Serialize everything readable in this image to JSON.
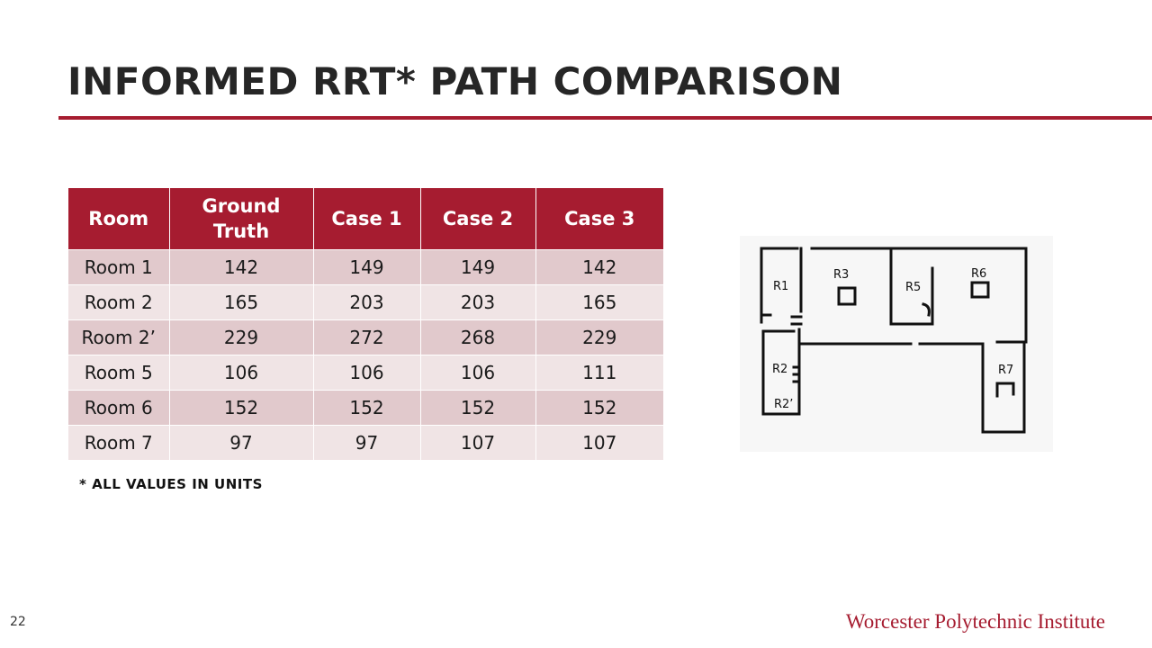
{
  "slide": {
    "title": "INFORMED RRT* PATH COMPARISON",
    "footnote": "* ALL VALUES IN UNITS",
    "page_number": "22",
    "institute": "Worcester Polytechnic Institute",
    "accent_color": "#a61c30"
  },
  "table": {
    "headers": [
      "Room",
      "Ground Truth",
      "Case 1",
      "Case 2",
      "Case 3"
    ],
    "rows": [
      [
        "Room 1",
        "142",
        "149",
        "149",
        "142"
      ],
      [
        "Room 2",
        "165",
        "203",
        "203",
        "165"
      ],
      [
        "Room 2’",
        "229",
        "272",
        "268",
        "229"
      ],
      [
        "Room 5",
        "106",
        "106",
        "106",
        "111"
      ],
      [
        "Room 6",
        "152",
        "152",
        "152",
        "152"
      ],
      [
        "Room 7",
        "97",
        "97",
        "107",
        "107"
      ]
    ]
  },
  "map": {
    "labels": [
      "R1",
      "R3",
      "R5",
      "R6",
      "R2",
      "R7",
      "R2’"
    ]
  }
}
